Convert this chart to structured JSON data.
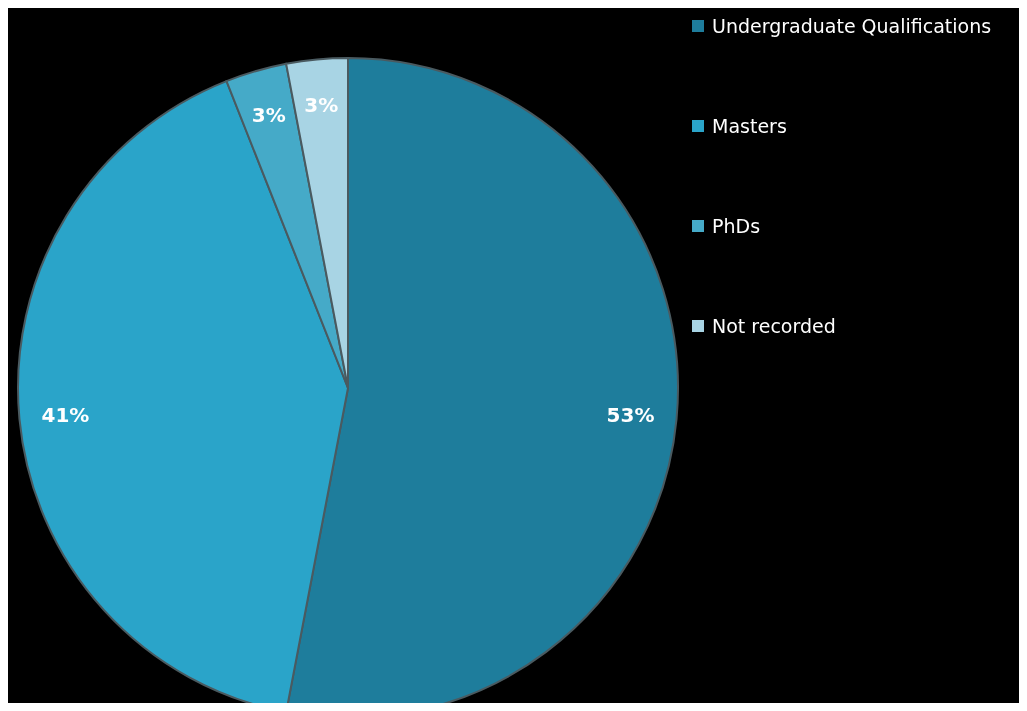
{
  "chart_data": {
    "type": "pie",
    "categories": [
      "Undergraduate Qualifications",
      "Masters",
      "PhDs",
      "Not recorded"
    ],
    "values": [
      53,
      41,
      3,
      3
    ],
    "colors": [
      "#1e7d9c",
      "#2aa4c9",
      "#45aac8",
      "#a8d4e4"
    ],
    "value_labels": [
      "53%",
      "41%",
      "3%",
      "3%"
    ],
    "legend": "top right"
  }
}
